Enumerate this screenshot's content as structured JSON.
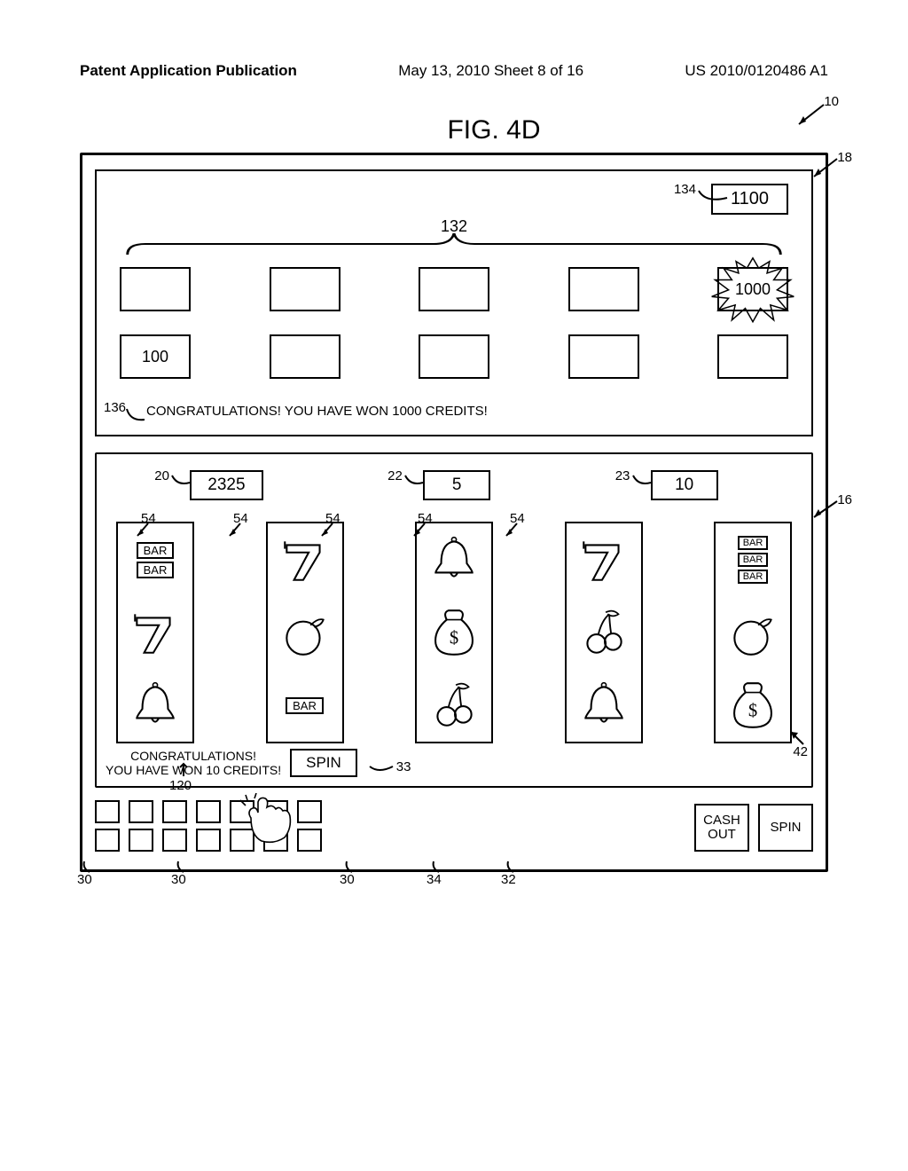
{
  "header": {
    "left": "Patent Application Publication",
    "center": "May 13, 2010  Sheet 8 of 16",
    "right": "US 2010/0120486 A1"
  },
  "figure": {
    "title": "FIG. 4D",
    "refs": {
      "r10": "10",
      "r18": "18",
      "r134": "134",
      "r132": "132",
      "r136": "136",
      "r16": "16",
      "r20": "20",
      "r22": "22",
      "r23": "23",
      "r54a": "54",
      "r54b": "54",
      "r54c": "54",
      "r54d": "54",
      "r54e": "54",
      "r33": "33",
      "r42": "42",
      "r120": "120",
      "r30a": "30",
      "r30b": "30",
      "r30c": "30",
      "r34": "34",
      "r32": "32"
    }
  },
  "upper": {
    "counter": "1100",
    "brace_label": "132",
    "row1": [
      "",
      "",
      "",
      "",
      "1000"
    ],
    "row2": [
      "100",
      "",
      "",
      "",
      ""
    ],
    "congrats": "CONGRATULATIONS! YOU HAVE WON 1000 CREDITS!"
  },
  "lower": {
    "credits": {
      "a": "2325",
      "b": "5",
      "c": "10"
    },
    "reels": [
      [
        "bar-bar",
        "seven",
        "bell"
      ],
      [
        "seven",
        "orange",
        "bar-single"
      ],
      [
        "bell",
        "moneybag",
        "cherry"
      ],
      [
        "seven",
        "cherry",
        "bell"
      ],
      [
        "bar-bar-bar",
        "orange",
        "moneybag"
      ]
    ],
    "congrats_line1": "CONGRATULATIONS!",
    "congrats_line2": "YOU HAVE WON 10 CREDITS!",
    "spin_label": "SPIN"
  },
  "buttons": {
    "cashout": "CASH\nOUT",
    "spin": "SPIN"
  }
}
